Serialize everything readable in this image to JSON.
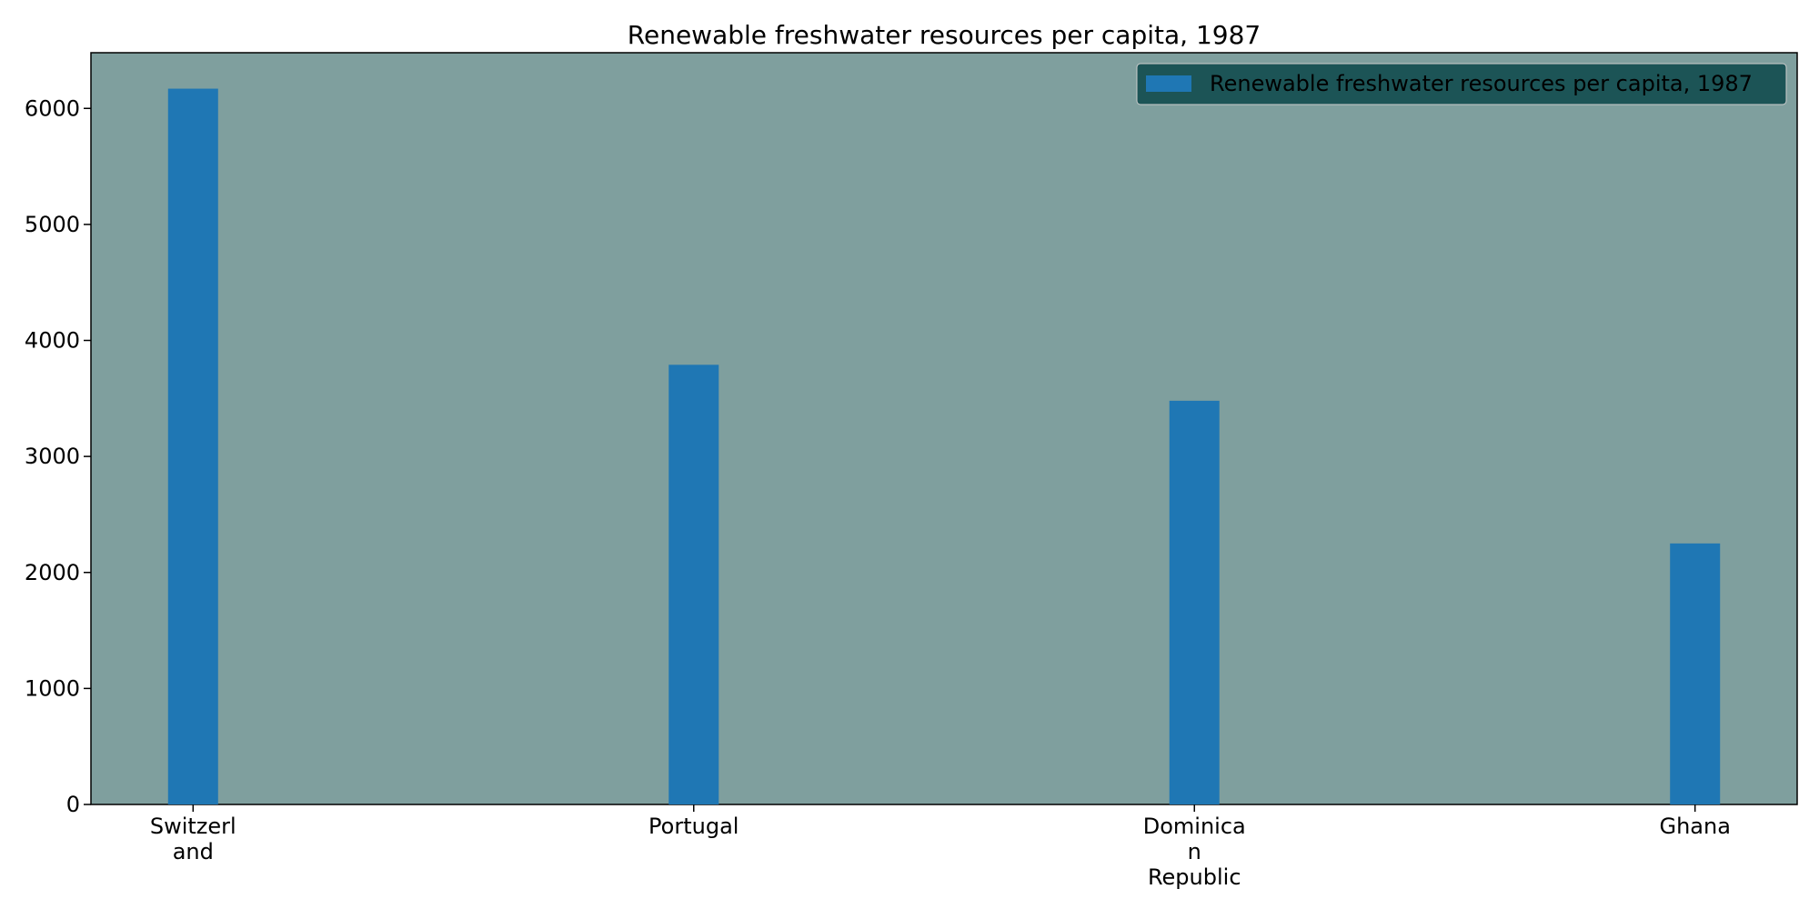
{
  "chart_data": {
    "type": "bar",
    "title": "Renewable freshwater resources per capita, 1987",
    "categories": [
      "Switzerl\nand",
      "Portugal",
      "Dominica\nn\nRepublic",
      "Ghana"
    ],
    "series": [
      {
        "name": "Renewable freshwater resources per capita, 1987",
        "values": [
          6170,
          3790,
          3480,
          2250
        ],
        "color": "#1f77b4"
      }
    ],
    "xlabel": "",
    "ylabel": "",
    "ylim": [
      0,
      6480
    ],
    "yticks": [
      0,
      1000,
      2000,
      3000,
      4000,
      5000,
      6000
    ],
    "grid": false,
    "legend_position": "top-right",
    "colors": {
      "plot_background": "#7f9f9e",
      "legend_background": "#1c5456",
      "axis": "#000000"
    }
  }
}
